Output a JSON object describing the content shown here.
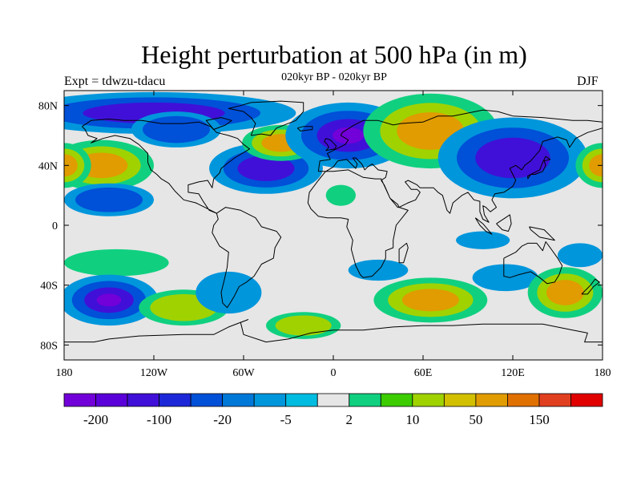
{
  "title": "Height perturbation at 500 hPa (in m)",
  "experiment_label": "Expt = tdwzu-tdacu",
  "subtitle": "020kyr BP - 020kyr BP",
  "season": "DJF",
  "map": {
    "projection": "cylindrical equidistant",
    "lon_range": [
      -180,
      180
    ],
    "lat_range": [
      -90,
      90
    ],
    "background_color": "#e6e6e6",
    "coastlines": true,
    "lat_ticks": [
      {
        "value": 80,
        "label": "80N"
      },
      {
        "value": 40,
        "label": "40N"
      },
      {
        "value": 0,
        "label": "0"
      },
      {
        "value": -40,
        "label": "40S"
      },
      {
        "value": -80,
        "label": "80S"
      }
    ],
    "lon_ticks": [
      {
        "value": -180,
        "label": "180"
      },
      {
        "value": -120,
        "label": "120W"
      },
      {
        "value": -60,
        "label": "60W"
      },
      {
        "value": 0,
        "label": "0"
      },
      {
        "value": 60,
        "label": "60E"
      },
      {
        "value": 120,
        "label": "120E"
      },
      {
        "value": 180,
        "label": "180"
      }
    ]
  },
  "colorbar": {
    "colors": [
      "#7200d8",
      "#5a00d8",
      "#4010d8",
      "#1c28d8",
      "#0050d8",
      "#0078d8",
      "#0096dc",
      "#00bce0",
      "#e6e6e6",
      "#10d080",
      "#3ccc00",
      "#a0d200",
      "#d2c000",
      "#e09c00",
      "#e07000",
      "#e04020",
      "#e00000"
    ],
    "labels": [
      {
        "after_box": 1,
        "text": "-200"
      },
      {
        "after_box": 3,
        "text": "-100"
      },
      {
        "after_box": 5,
        "text": "-20"
      },
      {
        "after_box": 7,
        "text": "-5"
      },
      {
        "after_box": 9,
        "text": "2"
      },
      {
        "after_box": 11,
        "text": "10"
      },
      {
        "after_box": 13,
        "text": "50"
      },
      {
        "after_box": 15,
        "text": "150"
      }
    ]
  },
  "features": [
    {
      "name": "north-pacific-positive-anomaly",
      "lon": -155,
      "lat": 40,
      "rx": 35,
      "ry": 17,
      "levels": [
        2,
        10,
        50
      ]
    },
    {
      "name": "north-pacific-south-lobe-negative",
      "lon": -150,
      "lat": 17,
      "rx": 30,
      "ry": 11,
      "levels": [
        -5,
        -20
      ]
    },
    {
      "name": "arctic-negative-band",
      "lon": -120,
      "lat": 75,
      "rx": 95,
      "ry": 14,
      "levels": [
        -5,
        -20,
        -100
      ]
    },
    {
      "name": "north-america-low",
      "lon": -105,
      "lat": 64,
      "rx": 30,
      "ry": 12,
      "levels": [
        -5,
        -20
      ]
    },
    {
      "name": "north-atlantic-low",
      "lon": -45,
      "lat": 38,
      "rx": 38,
      "ry": 17,
      "levels": [
        -5,
        -20,
        -100
      ]
    },
    {
      "name": "east-atlantic-high",
      "lon": -35,
      "lat": 55,
      "rx": 26,
      "ry": 12,
      "levels": [
        2,
        10,
        50
      ]
    },
    {
      "name": "europe-deep-low",
      "lon": 10,
      "lat": 60,
      "rx": 42,
      "ry": 22,
      "levels": [
        -5,
        -20,
        -100,
        -200
      ]
    },
    {
      "name": "siberian-high",
      "lon": 65,
      "lat": 63,
      "rx": 45,
      "ry": 25,
      "levels": [
        2,
        10,
        50
      ]
    },
    {
      "name": "east-asia-low",
      "lon": 120,
      "lat": 45,
      "rx": 50,
      "ry": 27,
      "levels": [
        -5,
        -20,
        -100
      ]
    },
    {
      "name": "west-pacific-high",
      "lon": 180,
      "lat": 40,
      "rx": 18,
      "ry": 15,
      "levels": [
        2,
        10,
        50
      ]
    },
    {
      "name": "tropical-atlantic-positive",
      "lon": 5,
      "lat": 20,
      "rx": 10,
      "ry": 7,
      "levels": [
        2
      ]
    },
    {
      "name": "south-indian-patch",
      "lon": 100,
      "lat": -10,
      "rx": 18,
      "ry": 6,
      "levels": [
        -5
      ]
    },
    {
      "name": "south-pacific-high-band",
      "lon": -145,
      "lat": -25,
      "rx": 35,
      "ry": 9,
      "levels": [
        2
      ]
    },
    {
      "name": "south-pacific-deep-low",
      "lon": -150,
      "lat": -50,
      "rx": 33,
      "ry": 17,
      "levels": [
        -5,
        -20,
        -100,
        -200
      ]
    },
    {
      "name": "southeast-pacific-high",
      "lon": -100,
      "lat": -55,
      "rx": 30,
      "ry": 12,
      "levels": [
        2,
        10
      ]
    },
    {
      "name": "south-america-low",
      "lon": -70,
      "lat": -45,
      "rx": 22,
      "ry": 14,
      "levels": [
        -5
      ]
    },
    {
      "name": "south-atlantic-high",
      "lon": -20,
      "lat": -67,
      "rx": 25,
      "ry": 9,
      "levels": [
        2,
        10
      ]
    },
    {
      "name": "south-atlantic-low-band",
      "lon": 30,
      "lat": -30,
      "rx": 20,
      "ry": 7,
      "levels": [
        -5
      ]
    },
    {
      "name": "south-indian-high",
      "lon": 65,
      "lat": -50,
      "rx": 38,
      "ry": 15,
      "levels": [
        2,
        10,
        50
      ]
    },
    {
      "name": "southeast-indian-low",
      "lon": 115,
      "lat": -35,
      "rx": 22,
      "ry": 9,
      "levels": [
        -5
      ]
    },
    {
      "name": "southwest-pacific-high",
      "lon": 155,
      "lat": -45,
      "rx": 25,
      "ry": 17,
      "levels": [
        2,
        10,
        50
      ]
    },
    {
      "name": "southwest-pacific-low",
      "lon": 165,
      "lat": -20,
      "rx": 15,
      "ry": 8,
      "levels": [
        -5
      ]
    }
  ]
}
